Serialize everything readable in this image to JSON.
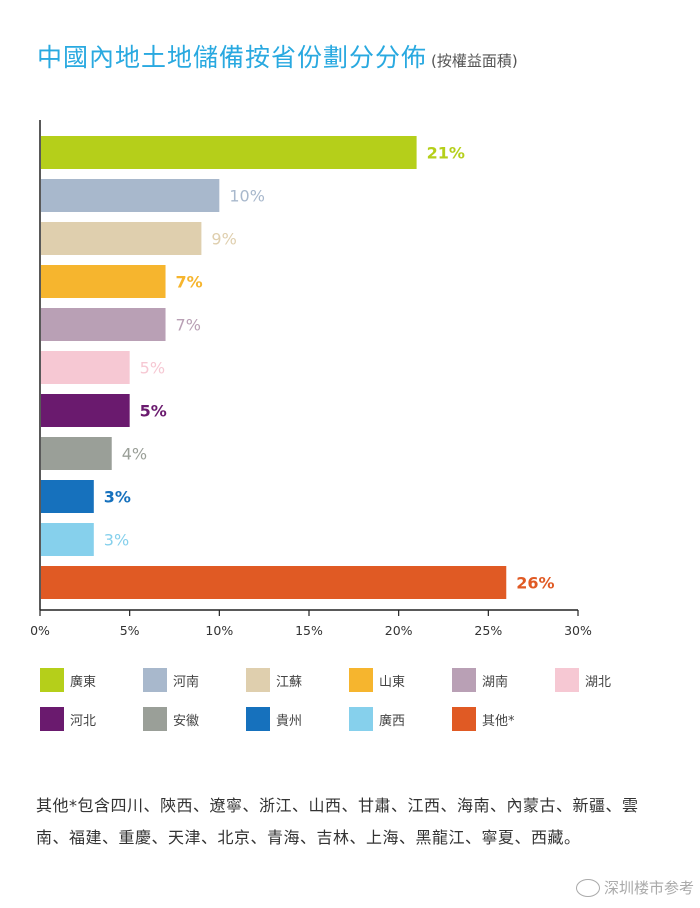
{
  "header": {
    "title": "中國內地土地儲備按省份劃分分佈",
    "subtitle": "(按權益面積)"
  },
  "chart_data": {
    "type": "bar",
    "orientation": "horizontal",
    "title": "中國內地土地儲備按省份劃分分佈 (按權益面積)",
    "categories": [
      "廣東",
      "河南",
      "江蘇",
      "山東",
      "湖南",
      "湖北",
      "河北",
      "安徽",
      "貴州",
      "廣西",
      "其他*"
    ],
    "values": [
      21,
      10,
      9,
      7,
      7,
      5,
      5,
      4,
      3,
      3,
      26
    ],
    "value_labels": [
      "21%",
      "10%",
      "9%",
      "7%",
      "7%",
      "5%",
      "5%",
      "4%",
      "3%",
      "3%",
      "26%"
    ],
    "colors": [
      "#b5cf1a",
      "#a8b8cc",
      "#dfcfae",
      "#f6b52e",
      "#b9a0b5",
      "#f6c8d3",
      "#6a1a6e",
      "#9a9f98",
      "#1671bd",
      "#86d0ec",
      "#e05a24"
    ],
    "bold_labels": [
      true,
      false,
      false,
      true,
      false,
      false,
      true,
      false,
      true,
      false,
      true
    ],
    "xlim": [
      0,
      30
    ],
    "xticks": [
      "0%",
      "5%",
      "10%",
      "15%",
      "20%",
      "25%",
      "30%"
    ],
    "grid": false,
    "legend_position": "bottom"
  },
  "legend": {
    "items": [
      "廣東",
      "河南",
      "江蘇",
      "山東",
      "湖南",
      "湖北",
      "河北",
      "安徽",
      "貴州",
      "廣西",
      "其他*"
    ]
  },
  "footnote": "其他*包含四川、陝西、遼寧、浙江、山西、甘肅、江西、海南、內蒙古、新疆、雲南、福建、重慶、天津、北京、青海、吉林、上海、黑龍江、寧夏、西藏。",
  "watermark": "深圳楼市参考"
}
